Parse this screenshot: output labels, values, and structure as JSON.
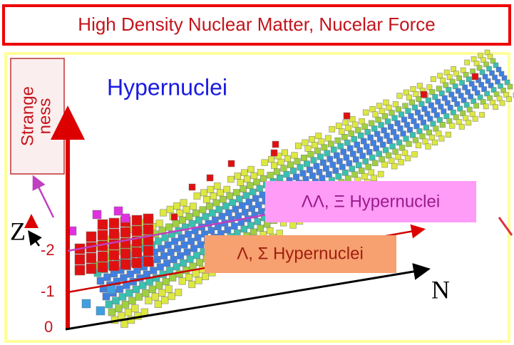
{
  "header": {
    "title": "High Density Nuclear Matter, Nucelar Force"
  },
  "diagram": {
    "heading": "Hypernuclei",
    "strangeness_label": [
      "Strange",
      "ness"
    ],
    "z_axis": {
      "label": "Z",
      "ticks": [
        "-2",
        "-1",
        "0"
      ]
    },
    "n_axis": {
      "label": "N"
    },
    "labels": [
      "ΛΛ, Ξ Hypernuclei",
      "Λ, Σ Hypernuclei"
    ]
  }
}
